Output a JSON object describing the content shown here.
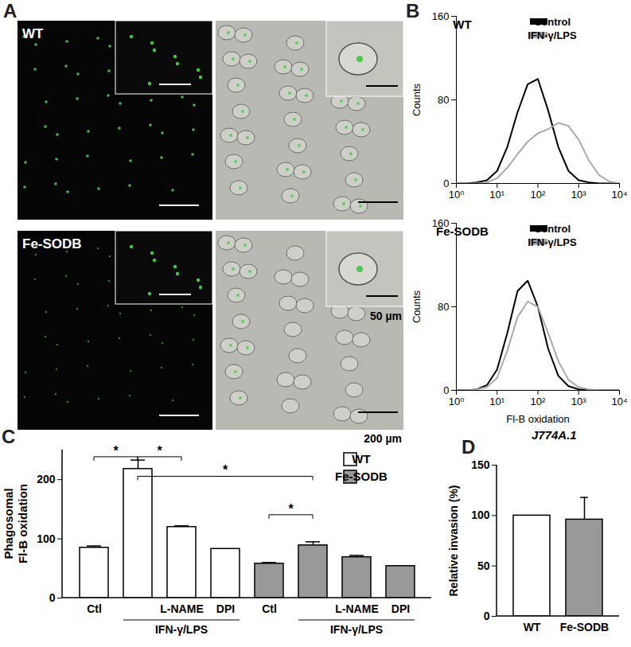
{
  "chart_data": [
    {
      "type": "image",
      "panel": "A",
      "rows": [
        "WT",
        "Fe-SODB"
      ],
      "scale_bars": [
        "50 µm",
        "200 µm"
      ]
    },
    {
      "type": "line",
      "panel": "B",
      "annotations": [
        "WT"
      ],
      "log": "x",
      "ylabel": "Counts",
      "x": [
        1,
        1.78,
        3.16,
        5.62,
        10,
        17.8,
        31.6,
        56.2,
        100,
        178,
        316,
        562,
        1000,
        1778,
        3162,
        5623,
        10000
      ],
      "xlim": [
        1,
        10000
      ],
      "xticks": [
        {
          "value": 1,
          "label": "10⁰"
        },
        {
          "value": 10,
          "label": "10¹"
        },
        {
          "value": 100,
          "label": "10²"
        },
        {
          "value": 1000,
          "label": "10³"
        },
        {
          "value": 10000,
          "label": "10⁴"
        }
      ],
      "ylim": [
        0,
        160
      ],
      "yticks": [
        0,
        80,
        160
      ],
      "legend": "top-right",
      "series": [
        {
          "name": "Control",
          "color": "#000000",
          "values": [
            0,
            0,
            1,
            3,
            12,
            35,
            68,
            95,
            100,
            70,
            35,
            12,
            3,
            1,
            0,
            0,
            0
          ]
        },
        {
          "name": "IFN-γ/LPS",
          "color": "#aaaaaa",
          "values": [
            0,
            0,
            0,
            1,
            5,
            15,
            28,
            40,
            48,
            52,
            58,
            55,
            42,
            22,
            8,
            2,
            0
          ]
        }
      ]
    },
    {
      "type": "line",
      "annotations": [
        "Fe-SODB"
      ],
      "log": "x",
      "ylabel": "Counts",
      "xlabel": "Fl-B oxidation",
      "caption": "J774A.1",
      "x": [
        1,
        1.78,
        3.16,
        5.62,
        10,
        17.8,
        31.6,
        56.2,
        100,
        178,
        316,
        562,
        1000,
        1778,
        3162,
        5623,
        10000
      ],
      "xlim": [
        1,
        10000
      ],
      "xticks": [
        {
          "value": 1,
          "label": "10⁰"
        },
        {
          "value": 10,
          "label": "10¹"
        },
        {
          "value": 100,
          "label": "10²"
        },
        {
          "value": 1000,
          "label": "10³"
        },
        {
          "value": 10000,
          "label": "10⁴"
        }
      ],
      "ylim": [
        0,
        160
      ],
      "yticks": [
        0,
        80,
        160
      ],
      "legend": "top-right",
      "series": [
        {
          "name": "Control",
          "color": "#000000",
          "values": [
            0,
            0,
            1,
            5,
            20,
            55,
            95,
            105,
            80,
            40,
            14,
            4,
            1,
            0,
            0,
            0,
            0
          ]
        },
        {
          "name": "IFN-γ/LPS",
          "color": "#aaaaaa",
          "values": [
            0,
            0,
            1,
            3,
            12,
            38,
            70,
            85,
            80,
            55,
            28,
            10,
            3,
            1,
            0,
            0,
            0
          ]
        }
      ]
    },
    {
      "type": "bar",
      "panel": "C",
      "ylabel": [
        "Phagosomal",
        "Fl-B oxidation"
      ],
      "categories": [
        "Ctl",
        null,
        "L-NAME",
        "DPI",
        "Ctl",
        null,
        "L-NAME",
        "DPI"
      ],
      "groups": [
        {
          "label": "IFN-γ/LPS",
          "from": 1,
          "to": 3
        },
        {
          "label": "IFN-γ/LPS",
          "from": 5,
          "to": 7
        }
      ],
      "ylim": [
        0,
        250
      ],
      "yticks": [
        0,
        100,
        200
      ],
      "legend": "top-right",
      "series": [
        {
          "name": "WT",
          "color": "#ffffff",
          "values": [
            85,
            218,
            120,
            83,
            null,
            null,
            null,
            null
          ],
          "errors": [
            3,
            15,
            2,
            0,
            null,
            null,
            null,
            null
          ]
        },
        {
          "name": "Fe-SODB",
          "color": "#999999",
          "values": [
            null,
            null,
            null,
            null,
            58,
            89,
            69,
            54
          ],
          "errors": [
            null,
            null,
            null,
            null,
            2,
            6,
            3,
            0
          ]
        }
      ],
      "significance": [
        {
          "from": 0,
          "to": 1,
          "y": 238,
          "label": "*"
        },
        {
          "from": 1,
          "to": 2,
          "y": 238,
          "label": "*"
        },
        {
          "from": 1,
          "to": 5,
          "y": 205,
          "label": "*"
        },
        {
          "from": 4,
          "to": 5,
          "y": 140,
          "label": "*"
        }
      ]
    },
    {
      "type": "bar",
      "panel": "D",
      "ylabel": "Relative invasion (%)",
      "categories": [
        "WT",
        "Fe-SODB"
      ],
      "values": [
        100,
        96
      ],
      "errors": [
        0,
        22
      ],
      "colors": [
        "#ffffff",
        "#999999"
      ],
      "ylim": [
        0,
        150
      ],
      "yticks": [
        0,
        50,
        100,
        150
      ]
    }
  ]
}
